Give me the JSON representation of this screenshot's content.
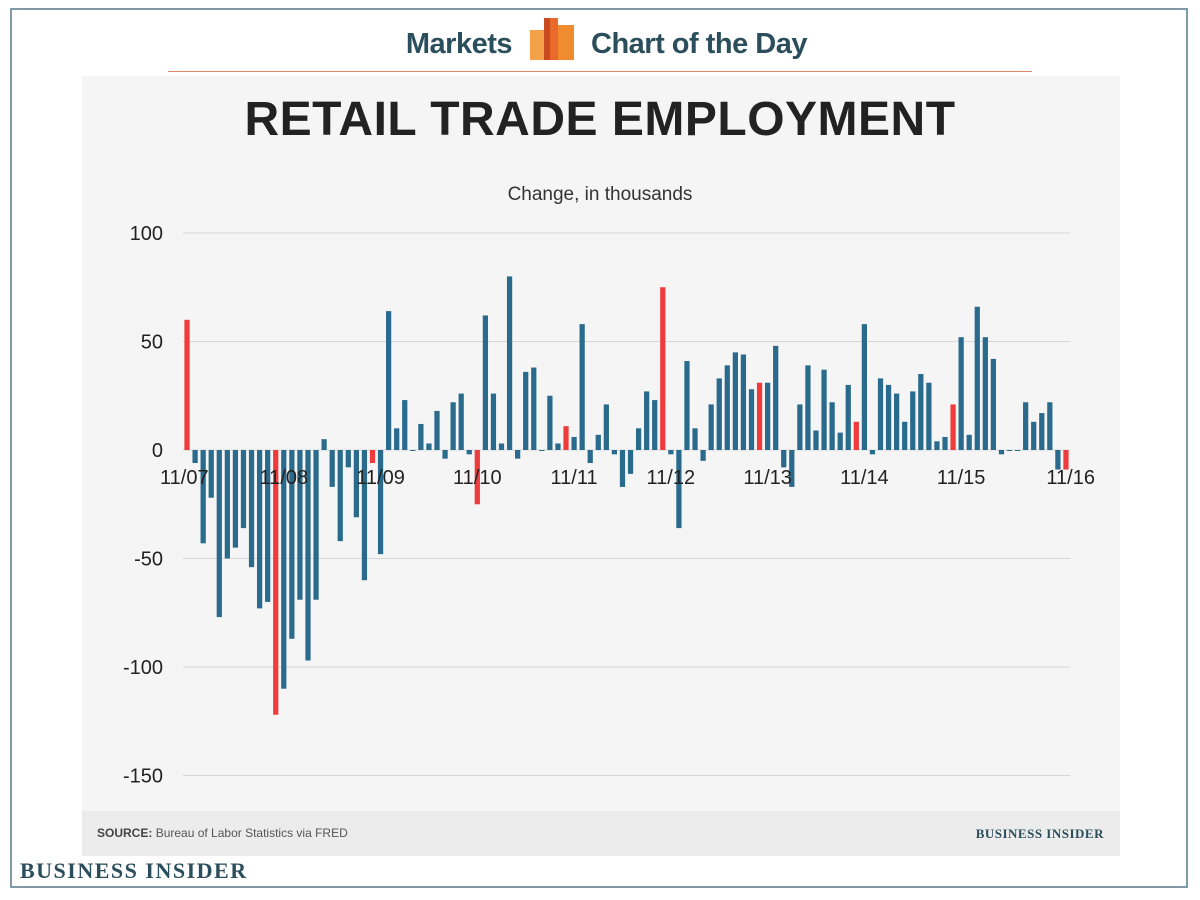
{
  "header": {
    "left_label": "Markets",
    "right_label": "Chart of the Day"
  },
  "footer": {
    "source_label": "SOURCE:",
    "source_text": "Bureau of Labor Statistics via FRED",
    "brand_small": "BUSINESS INSIDER",
    "brand_big": "BUSINESS INSIDER"
  },
  "colors": {
    "bar": "#2a6a8c",
    "highlight": "#ef3b3b",
    "grid": "#d6d6d6",
    "brand": "#2b4e5c"
  },
  "chart_data": {
    "type": "bar",
    "title": "RETAIL TRADE EMPLOYMENT",
    "subtitle": "Change, in thousands",
    "xlabel": "",
    "ylabel": "",
    "ylim": [
      -160,
      100
    ],
    "yticks": [
      100,
      50,
      0,
      -50,
      -100,
      -150
    ],
    "x_tick_labels": [
      "11/07",
      "11/08",
      "11/09",
      "11/10",
      "11/11",
      "11/12",
      "11/13",
      "11/14",
      "11/15",
      "11/16"
    ],
    "x_tick_indices": [
      0,
      12,
      24,
      36,
      48,
      60,
      72,
      84,
      96,
      108
    ],
    "grid": true,
    "legend": "none",
    "note": "",
    "values": [
      60,
      -6,
      -43,
      -22,
      -77,
      -50,
      -45,
      -36,
      -54,
      -73,
      -70,
      -122,
      -110,
      -87,
      -69,
      -97,
      -69,
      5,
      -17,
      -42,
      -8,
      -31,
      -60,
      -6,
      -48,
      64,
      10,
      23,
      0,
      12,
      3,
      18,
      -4,
      22,
      26,
      -2,
      -25,
      62,
      26,
      3,
      80,
      -4,
      36,
      38,
      0,
      25,
      3,
      11,
      6,
      58,
      -6,
      7,
      21,
      -2,
      -17,
      -11,
      10,
      27,
      23,
      75,
      -2,
      -36,
      41,
      10,
      -5,
      21,
      33,
      39,
      45,
      44,
      28,
      31,
      31,
      48,
      -8,
      -17,
      21,
      39,
      9,
      37,
      22,
      8,
      30,
      13,
      58,
      -2,
      33,
      30,
      26,
      13,
      27,
      35,
      31,
      4,
      6,
      21,
      52,
      7,
      66,
      52,
      42,
      -2,
      0,
      0,
      22,
      13,
      17,
      22,
      -9,
      -9
    ],
    "highlight_indices": [
      0,
      11,
      23,
      36,
      47,
      59,
      71,
      83,
      95,
      109
    ]
  }
}
